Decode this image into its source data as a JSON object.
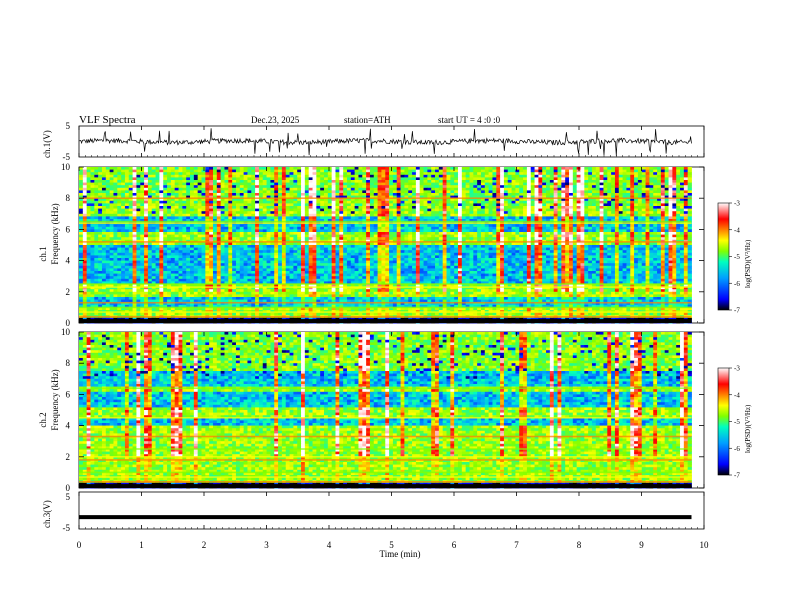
{
  "header": {
    "title": "VLF  Spectra",
    "date": "Dec.23, 2025",
    "station": "station=ATH",
    "start_ut": "start  UT  =   4 :0  :0"
  },
  "chart_data": [
    {
      "type": "line",
      "name": "ch1-voltage",
      "ylabel": "ch.1(V)",
      "ylim": [
        -5,
        5
      ],
      "yticks": [
        "5",
        "-5"
      ],
      "xlim": [
        0,
        10
      ],
      "x_end": 9.8,
      "baseline": 0,
      "trace_color": "#000000"
    },
    {
      "type": "heatmap",
      "name": "ch1-spectrogram",
      "ylabel_channel": "ch.1",
      "ylabel": "Frequency  (kHz)",
      "ylim": [
        0,
        10
      ],
      "yticks": [
        "0",
        "2",
        "4",
        "6",
        "8",
        "10"
      ],
      "xlim": [
        0,
        10
      ],
      "x_end": 9.8,
      "colorbar": {
        "label": "log(PSD)(V²/Hz)",
        "range": [
          -7,
          -3
        ],
        "ticks": [
          "-3",
          "-4",
          "-5",
          "-6",
          "-7"
        ]
      },
      "horizontal_lines_khz": [
        0.4,
        0.7,
        1.0,
        1.3,
        2.3,
        2.5,
        5.2,
        6.4,
        6.5,
        8.0
      ],
      "low_psd_bands_khz": [
        [
          2.5,
          5.0
        ],
        [
          5.8,
          6.8
        ],
        [
          1.0,
          1.6
        ]
      ]
    },
    {
      "type": "heatmap",
      "name": "ch2-spectrogram",
      "ylabel_channel": "ch.2",
      "ylabel": "Frequency  (kHz)",
      "ylim": [
        0,
        10
      ],
      "yticks": [
        "0",
        "2",
        "4",
        "6",
        "8",
        "10"
      ],
      "xlim": [
        0,
        10
      ],
      "x_end": 9.8,
      "colorbar": {
        "label": "log(PSD)(V²/Hz)",
        "range": [
          -7,
          -3
        ],
        "ticks": [
          "-3",
          "-4",
          "-5",
          "-6",
          "-7"
        ]
      },
      "horizontal_lines_khz": [
        0.4,
        0.7,
        1.0,
        1.8,
        2.0,
        2.5,
        3.3,
        4.5,
        6.4
      ],
      "low_psd_bands_khz": [
        [
          4.0,
          4.5
        ],
        [
          5.2,
          6.2
        ],
        [
          6.5,
          7.5
        ]
      ]
    },
    {
      "type": "line",
      "name": "ch3-voltage",
      "ylabel": "ch.3(V)",
      "ylim": [
        -5,
        5
      ],
      "yticks": [
        "5",
        "-5"
      ],
      "xlim": [
        0,
        10
      ],
      "x_end": 9.8,
      "constant_value": -1.8,
      "trace_color": "#000000"
    }
  ],
  "xaxis": {
    "label": "Time  (min)",
    "ticks": [
      "0",
      "1",
      "2",
      "3",
      "4",
      "5",
      "6",
      "7",
      "8",
      "9",
      "10"
    ]
  },
  "colormap": [
    "#000000",
    "#0000ff",
    "#00a0ff",
    "#00ffc0",
    "#80ff00",
    "#ffff00",
    "#ff8000",
    "#ff0000",
    "#ffffff"
  ]
}
